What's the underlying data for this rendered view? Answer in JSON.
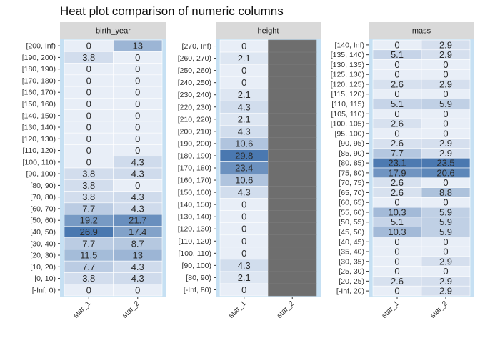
{
  "chart_data": {
    "type": "heatmap",
    "title": "Heat plot comparison of numeric columns",
    "x_categories": [
      "star_1",
      "star_2"
    ],
    "colors": {
      "low": "#e8eef7",
      "high": "#4a78b0",
      "missing": "#6e6e6e",
      "panel_border": "#c6e0f3",
      "strip": "#d9d9d9"
    },
    "panels": [
      {
        "variable": "birth_year",
        "bins": [
          "[200, Inf)",
          "[190, 200)",
          "[180, 190)",
          "[170, 180)",
          "[160, 170)",
          "[150, 160)",
          "[140, 150)",
          "[130, 140)",
          "[120, 130)",
          "[110, 120)",
          "[100, 110)",
          "[90, 100)",
          "[80, 90)",
          "[70, 80)",
          "[60, 70)",
          "[50, 60)",
          "[40, 50)",
          "[30, 40)",
          "[20, 30)",
          "[10, 20)",
          "[0, 10)",
          "[-Inf, 0)"
        ],
        "series": [
          {
            "name": "star_1",
            "values": [
              0,
              3.8,
              0,
              0,
              0,
              0,
              0,
              0,
              0,
              0,
              0,
              3.8,
              3.8,
              3.8,
              7.7,
              19.2,
              26.9,
              7.7,
              11.5,
              7.7,
              3.8,
              0
            ]
          },
          {
            "name": "star_2",
            "values": [
              13,
              0,
              0,
              0,
              0,
              0,
              0,
              0,
              0,
              0,
              4.3,
              4.3,
              0,
              4.3,
              4.3,
              21.7,
              17.4,
              8.7,
              13,
              4.3,
              4.3,
              0
            ]
          }
        ]
      },
      {
        "variable": "height",
        "bins": [
          "[270, Inf)",
          "[260, 270)",
          "[250, 260)",
          "[240, 250)",
          "[230, 240)",
          "[220, 230)",
          "[210, 220)",
          "[200, 210)",
          "[190, 200)",
          "[180, 190)",
          "[170, 180)",
          "[160, 170)",
          "[150, 160)",
          "[140, 150)",
          "[130, 140)",
          "[120, 130)",
          "[110, 120)",
          "[100, 110)",
          "[90, 100)",
          "[80, 90)",
          "[-Inf, 80)"
        ],
        "series": [
          {
            "name": "star_1",
            "values": [
              0,
              2.1,
              0,
              0,
              2.1,
              4.3,
              2.1,
              4.3,
              10.6,
              29.8,
              23.4,
              10.6,
              4.3,
              0,
              0,
              0,
              0,
              0,
              4.3,
              2.1,
              0
            ]
          },
          {
            "name": "star_2",
            "values": [
              null,
              null,
              null,
              null,
              null,
              null,
              null,
              null,
              null,
              null,
              null,
              null,
              null,
              null,
              null,
              null,
              null,
              null,
              null,
              null,
              null
            ]
          }
        ]
      },
      {
        "variable": "mass",
        "bins": [
          "[140, Inf)",
          "[135, 140)",
          "[130, 135)",
          "[125, 130)",
          "[120, 125)",
          "[115, 120)",
          "[110, 115)",
          "[105, 110)",
          "[100, 105)",
          "[95, 100)",
          "[90, 95)",
          "[85, 90)",
          "[80, 85)",
          "[75, 80)",
          "[70, 75)",
          "[65, 70)",
          "[60, 65)",
          "[55, 60)",
          "[50, 55)",
          "[45, 50)",
          "[40, 45)",
          "[35, 40)",
          "[30, 35)",
          "[25, 30)",
          "[20, 25)",
          "[-Inf, 20)"
        ],
        "series": [
          {
            "name": "star_1",
            "values": [
              0,
              5.1,
              0,
              0,
              2.6,
              0,
              5.1,
              0,
              2.6,
              0,
              2.6,
              7.7,
              23.1,
              17.9,
              2.6,
              2.6,
              0,
              10.3,
              5.1,
              10.3,
              0,
              0,
              0,
              0,
              2.6,
              0
            ]
          },
          {
            "name": "star_2",
            "values": [
              2.9,
              2.9,
              0,
              0,
              2.9,
              0,
              5.9,
              0,
              0,
              0,
              2.9,
              2.9,
              23.5,
              20.6,
              0,
              8.8,
              0,
              5.9,
              5.9,
              5.9,
              0,
              0,
              2.9,
              0,
              2.9,
              2.9
            ]
          }
        ]
      }
    ]
  }
}
